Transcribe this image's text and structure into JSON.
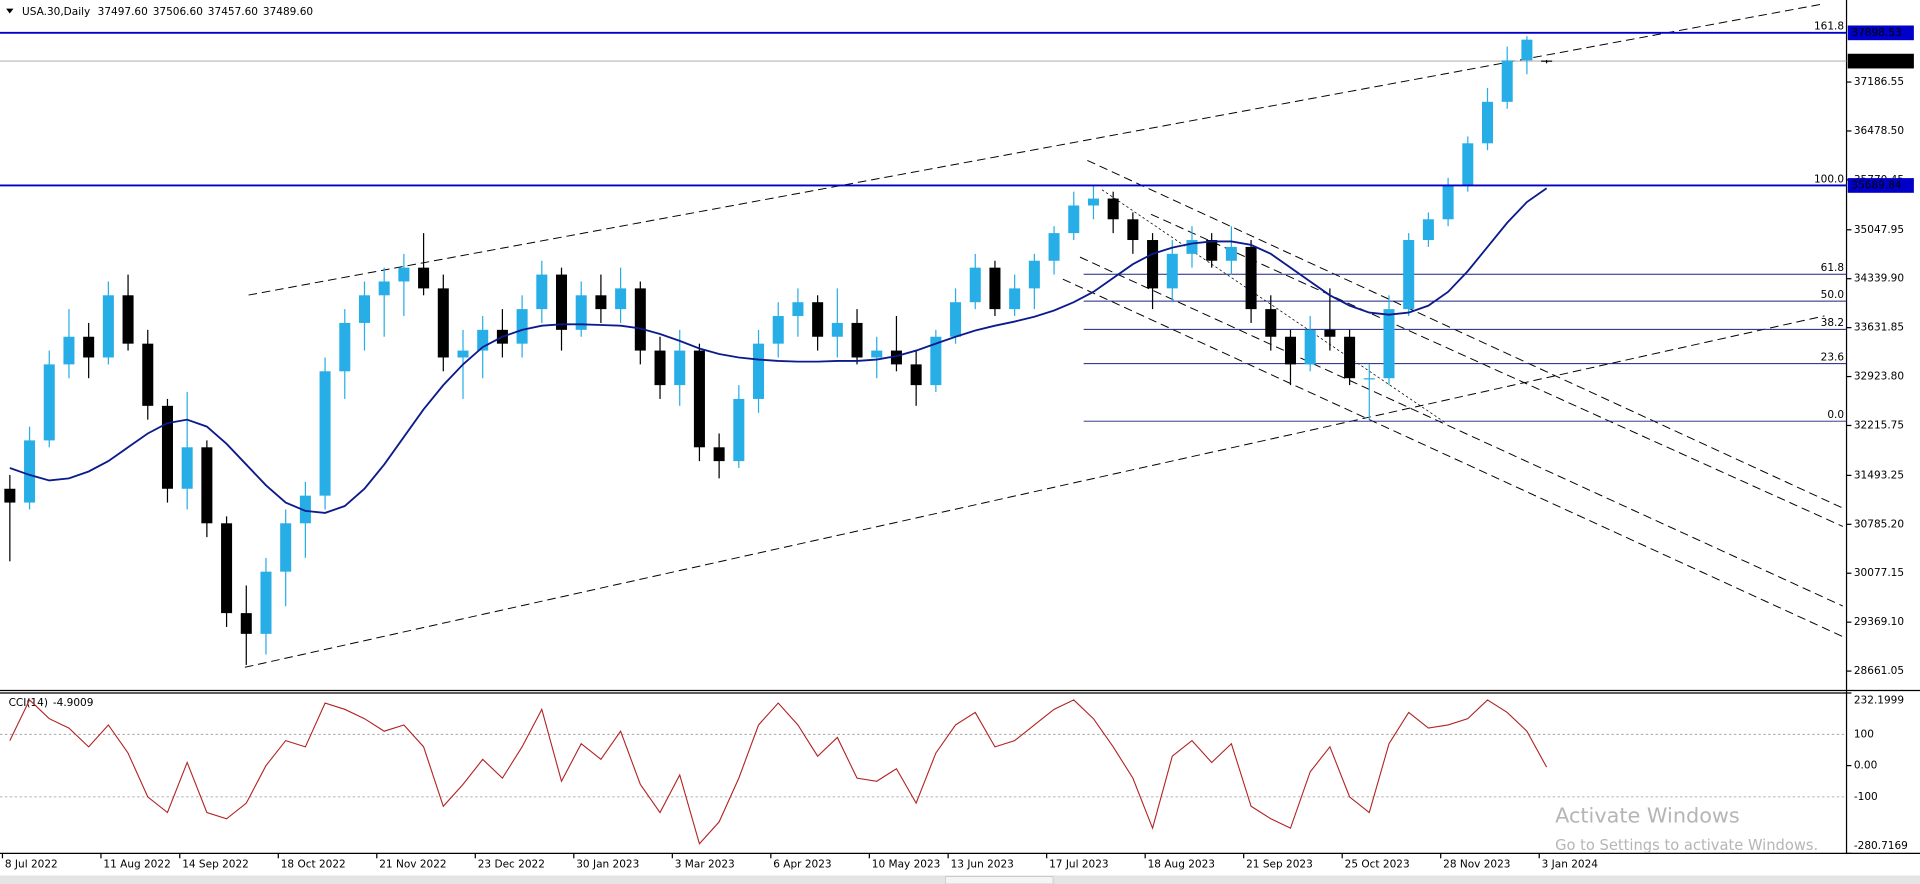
{
  "chart_data": [
    {
      "type": "candlestick",
      "symbol": "USA.30,Daily",
      "ohlc_labels": [
        "37497.60",
        "37506.60",
        "37457.60",
        "37489.60"
      ],
      "categories": [
        "8 Jul 2022",
        null,
        null,
        null,
        null,
        "11 Aug 2022",
        null,
        null,
        null,
        "14 Sep 2022",
        null,
        null,
        null,
        null,
        "18 Oct 2022",
        null,
        null,
        null,
        null,
        "21 Nov 2022",
        null,
        null,
        null,
        null,
        "23 Dec 2022",
        null,
        null,
        null,
        null,
        "30 Jan 2023",
        null,
        null,
        null,
        null,
        "3 Mar 2023",
        null,
        null,
        null,
        null,
        "6 Apr 2023",
        null,
        null,
        null,
        null,
        "10 May 2023",
        null,
        null,
        null,
        "13 Jun 2023",
        null,
        null,
        null,
        null,
        "17 Jul 2023",
        null,
        null,
        null,
        null,
        "18 Aug 2023",
        null,
        null,
        null,
        null,
        "21 Sep 2023",
        null,
        null,
        null,
        null,
        "25 Oct 2023",
        null,
        null,
        null,
        null,
        "28 Nov 2023",
        null,
        null,
        null,
        null,
        "3 Jan 2024"
      ],
      "open": [
        31300,
        31100,
        32000,
        33100,
        33500,
        33200,
        34100,
        33400,
        32500,
        31300,
        31900,
        30800,
        29500,
        29200,
        30100,
        30800,
        31200,
        33000,
        33700,
        34100,
        34300,
        34500,
        34200,
        33200,
        33300,
        33600,
        33400,
        33900,
        34400,
        33600,
        34100,
        33900,
        34200,
        33300,
        32800,
        33300,
        31900,
        31700,
        32600,
        33400,
        33800,
        34000,
        33500,
        33700,
        33200,
        33300,
        33100,
        32800,
        33500,
        34000,
        34500,
        33900,
        34200,
        34600,
        35000,
        35400,
        35500,
        35200,
        34900,
        34200,
        34700,
        34900,
        34600,
        34800,
        33900,
        33500,
        33100,
        33600,
        33500,
        32900,
        32900,
        33900,
        34900,
        35200,
        35700,
        36300,
        36900,
        37500,
        37497.6
      ],
      "high": [
        31500,
        32200,
        33300,
        33900,
        33700,
        34300,
        34400,
        33600,
        32600,
        32700,
        32000,
        30900,
        29900,
        30300,
        31000,
        31400,
        33200,
        33900,
        34300,
        34500,
        34700,
        35000,
        34400,
        33600,
        33800,
        33900,
        34100,
        34600,
        34500,
        34300,
        34400,
        34500,
        34300,
        33500,
        33600,
        33400,
        32100,
        32800,
        33600,
        34000,
        34200,
        34100,
        34200,
        33900,
        33500,
        33800,
        33300,
        33600,
        34200,
        34700,
        34600,
        34400,
        34700,
        35100,
        35600,
        35700,
        35600,
        35300,
        35000,
        34900,
        35100,
        35000,
        35100,
        34900,
        34100,
        33600,
        33800,
        34200,
        33600,
        33100,
        34100,
        35000,
        35300,
        35800,
        36400,
        37100,
        37700,
        37850,
        37506.6
      ],
      "low": [
        30250,
        31000,
        31900,
        32900,
        32900,
        33100,
        33300,
        32300,
        31100,
        31000,
        30600,
        29300,
        28750,
        28900,
        29600,
        30300,
        31000,
        32600,
        33300,
        33500,
        33800,
        34100,
        33000,
        32600,
        32900,
        33200,
        33200,
        33700,
        33300,
        33500,
        33700,
        33700,
        33100,
        32600,
        32500,
        31700,
        31450,
        31600,
        32400,
        33200,
        33500,
        33300,
        33200,
        33100,
        32900,
        33000,
        32500,
        32700,
        33400,
        33900,
        33800,
        33800,
        33900,
        34400,
        34900,
        35200,
        35000,
        34700,
        33900,
        34000,
        34500,
        34500,
        34400,
        33700,
        33300,
        32800,
        33000,
        33300,
        32800,
        32300,
        32800,
        33800,
        34800,
        35100,
        35600,
        36200,
        36800,
        37300,
        37457.6
      ],
      "close": [
        31100,
        32000,
        33100,
        33500,
        33200,
        34100,
        33400,
        32500,
        31300,
        31900,
        30800,
        29500,
        29200,
        30100,
        30800,
        31200,
        33000,
        33700,
        34100,
        34300,
        34500,
        34200,
        33200,
        33300,
        33600,
        33400,
        33900,
        34400,
        33600,
        34100,
        33900,
        34200,
        33300,
        32800,
        33300,
        31900,
        31700,
        32600,
        33400,
        33800,
        34000,
        33500,
        33700,
        33200,
        33300,
        33100,
        32800,
        33500,
        34000,
        34500,
        33900,
        34200,
        34600,
        35000,
        35400,
        35500,
        35200,
        34900,
        34200,
        34700,
        34900,
        34600,
        34800,
        33900,
        33500,
        33100,
        33600,
        33500,
        32900,
        32900,
        33900,
        34900,
        35200,
        35700,
        36300,
        36900,
        37500,
        37800,
        37489.6
      ],
      "up_color": "#27aee6",
      "down_color": "#000000",
      "moving_average": {
        "color": "#0b1a8c",
        "values": [
          31600,
          31500,
          31420,
          31450,
          31550,
          31700,
          31900,
          32100,
          32250,
          32300,
          32200,
          31950,
          31650,
          31350,
          31100,
          30980,
          30950,
          31050,
          31300,
          31650,
          32050,
          32450,
          32800,
          33100,
          33350,
          33500,
          33600,
          33660,
          33680,
          33680,
          33670,
          33660,
          33620,
          33540,
          33440,
          33330,
          33250,
          33200,
          33170,
          33150,
          33140,
          33140,
          33150,
          33150,
          33170,
          33220,
          33300,
          33400,
          33500,
          33590,
          33660,
          33720,
          33790,
          33880,
          34000,
          34150,
          34350,
          34550,
          34700,
          34790,
          34850,
          34880,
          34880,
          34830,
          34700,
          34500,
          34300,
          34100,
          33950,
          33850,
          33820,
          33850,
          33950,
          34150,
          34450,
          34800,
          35150,
          35450,
          35650
        ]
      },
      "ylim": [
        28397,
        38374
      ],
      "yticks": [
        37186.55,
        {
          "value": 36478.5,
          "label": "36478.50"
        },
        35770.45,
        35047.95,
        {
          "value": 34339.9,
          "label": "34339.90"
        },
        33631.85,
        {
          "value": 32923.8,
          "label": "32923.80"
        },
        32215.75,
        31493.25,
        {
          "value": 30785.2,
          "label": "30785.20"
        },
        30077.15,
        {
          "value": 29369.1,
          "label": "29369.10"
        },
        28661.05
      ],
      "levels": [
        {
          "value": 37898.53,
          "fib": "161.8",
          "color": "#0000c8"
        },
        {
          "value": 35689.84,
          "fib": "100.0",
          "color": "#0000c8"
        }
      ],
      "fib_levels": [
        {
          "fib": "61.8",
          "value": 34404
        },
        {
          "fib": "50.0",
          "value": 34015
        },
        {
          "fib": "38.2",
          "value": 33607
        },
        {
          "fib": "23.6",
          "value": 33111
        },
        {
          "fib": "0.0",
          "value": 32278
        }
      ],
      "fib_color": "#1a237e",
      "current_price": {
        "value": 37489.6,
        "label": "37489.60"
      }
    },
    {
      "type": "line",
      "name": "CCI(14)",
      "last_label": "-4.9009",
      "color": "#b22222",
      "values": [
        80,
        210,
        150,
        120,
        60,
        130,
        40,
        -100,
        -150,
        10,
        -150,
        -170,
        -120,
        0,
        80,
        60,
        200,
        180,
        150,
        110,
        130,
        60,
        -130,
        -60,
        20,
        -40,
        60,
        180,
        -50,
        70,
        20,
        110,
        -60,
        -150,
        -30,
        -250,
        -180,
        -40,
        130,
        200,
        130,
        30,
        90,
        -40,
        -50,
        -10,
        -120,
        40,
        130,
        170,
        60,
        80,
        130,
        180,
        210,
        150,
        60,
        -40,
        -200,
        30,
        80,
        10,
        70,
        -130,
        -170,
        -200,
        -20,
        60,
        -100,
        -150,
        70,
        170,
        120,
        130,
        150,
        210,
        170,
        110,
        -4.9009
      ],
      "ylim": [
        -280.7169,
        232.1999
      ],
      "yticks": [
        232.1999,
        100,
        {
          "value": 0,
          "label": "0.00"
        },
        -100,
        -280.7169
      ]
    }
  ],
  "watermark": {
    "title": "Activate Windows",
    "subtitle": "Go to Settings to activate Windows."
  }
}
